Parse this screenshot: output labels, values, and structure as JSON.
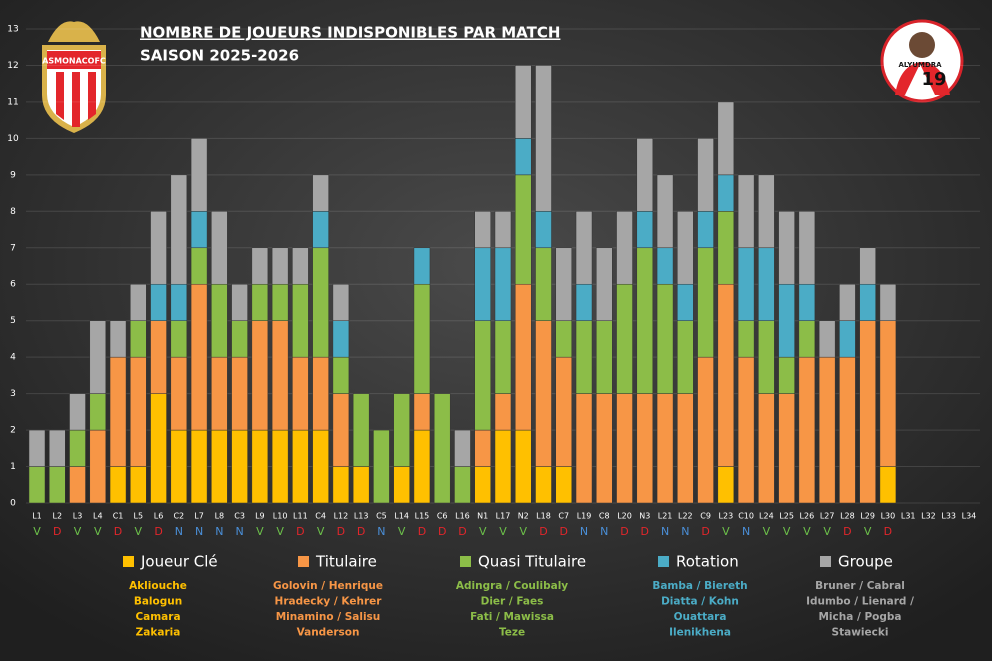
{
  "chart_data": {
    "type": "stacked-bar",
    "title": "NOMBRE DE JOUEURS INDISPONIBLES PAR MATCH",
    "subtitle": "SAISON 2025-2026",
    "categories": [
      "L1",
      "L2",
      "L3",
      "L4",
      "C1",
      "L5",
      "L6",
      "C2",
      "L7",
      "L8",
      "C3",
      "L9",
      "L10",
      "L11",
      "C4",
      "L12",
      "L13",
      "C5",
      "L14",
      "L15",
      "C6",
      "L16",
      "N1",
      "L17",
      "N2",
      "L18",
      "C7",
      "L19",
      "C8",
      "L20",
      "N3",
      "L21",
      "L22",
      "C9",
      "L23",
      "C10",
      "L24",
      "L25",
      "L26",
      "L27",
      "L28",
      "L29",
      "L30",
      "L31",
      "L32",
      "L33",
      "L34"
    ],
    "results": [
      "V",
      "D",
      "V",
      "V",
      "D",
      "V",
      "D",
      "N",
      "N",
      "N",
      "N",
      "V",
      "V",
      "D",
      "V",
      "D",
      "D",
      "N",
      "V",
      "D",
      "D",
      "D",
      "V",
      "V",
      "V",
      "D",
      "D",
      "N",
      "N",
      "D",
      "D",
      "N",
      "N",
      "D",
      "V",
      "N",
      "V",
      "V",
      "V",
      "V",
      "D",
      "V",
      "D",
      null,
      null,
      null,
      null
    ],
    "result_colors": {
      "V": "#6cc04a",
      "D": "#e2262b",
      "N": "#4a8fd8"
    },
    "series": [
      {
        "name": "Joueur Clé",
        "color": "#ffc000",
        "values": [
          0,
          0,
          0,
          0,
          1,
          1,
          3,
          2,
          2,
          2,
          2,
          2,
          2,
          2,
          2,
          1,
          1,
          0,
          1,
          2,
          0,
          0,
          1,
          2,
          2,
          1,
          1,
          0,
          0,
          0,
          0,
          0,
          0,
          0,
          1,
          0,
          0,
          0,
          0,
          0,
          0,
          0,
          1,
          0,
          0,
          0,
          0
        ],
        "players": [
          "Akliouche",
          "Balogun",
          "Camara",
          "Zakaria"
        ]
      },
      {
        "name": "Titulaire",
        "color": "#f79646",
        "values": [
          0,
          0,
          1,
          2,
          3,
          3,
          2,
          2,
          4,
          2,
          2,
          3,
          3,
          2,
          2,
          2,
          0,
          0,
          0,
          1,
          0,
          0,
          1,
          1,
          4,
          4,
          3,
          3,
          3,
          3,
          3,
          3,
          3,
          4,
          5,
          4,
          3,
          3,
          4,
          4,
          4,
          5,
          4,
          0,
          0,
          0,
          0
        ],
        "players": [
          "Golovin / Henrique",
          "Hradecky / Kehrer",
          "Minamino / Salisu",
          "Vanderson"
        ]
      },
      {
        "name": "Quasi Titulaire",
        "color": "#8cbd48",
        "values": [
          1,
          1,
          1,
          1,
          0,
          1,
          0,
          1,
          1,
          2,
          1,
          1,
          1,
          2,
          3,
          1,
          2,
          2,
          2,
          3,
          3,
          1,
          3,
          2,
          3,
          2,
          1,
          2,
          2,
          3,
          4,
          3,
          2,
          3,
          2,
          1,
          2,
          1,
          1,
          0,
          0,
          0,
          0,
          0,
          0,
          0,
          0
        ],
        "players": [
          "Adingra / Coulibaly",
          "Dier / Faes",
          "Fati / Mawissa",
          "Teze"
        ]
      },
      {
        "name": "Rotation",
        "color": "#4bacc6",
        "values": [
          0,
          0,
          0,
          0,
          0,
          0,
          1,
          1,
          1,
          0,
          0,
          0,
          0,
          0,
          1,
          1,
          0,
          0,
          0,
          1,
          0,
          0,
          2,
          2,
          1,
          1,
          0,
          1,
          0,
          0,
          1,
          1,
          1,
          1,
          1,
          2,
          2,
          2,
          1,
          0,
          1,
          1,
          0,
          0,
          0,
          0,
          0
        ],
        "players": [
          "Bamba / Biereth",
          "Diatta / Kohn",
          "Ouattara",
          "Ilenikhena"
        ]
      },
      {
        "name": "Groupe",
        "color": "#a6a6a6",
        "values": [
          1,
          1,
          1,
          2,
          1,
          1,
          2,
          3,
          2,
          2,
          1,
          1,
          1,
          1,
          1,
          1,
          0,
          0,
          0,
          0,
          0,
          1,
          1,
          1,
          2,
          4,
          2,
          2,
          2,
          2,
          2,
          2,
          2,
          2,
          2,
          2,
          2,
          2,
          2,
          1,
          1,
          1,
          1,
          0,
          0,
          0,
          0
        ],
        "players": [
          "Bruner / Cabral",
          "Idumbo / Lienard /",
          "Micha / Pogba",
          "Stawiecki"
        ]
      }
    ],
    "ylim": [
      0,
      13
    ],
    "yticks": [
      0,
      1,
      2,
      3,
      4,
      5,
      6,
      7,
      8,
      9,
      10,
      11,
      12,
      13
    ],
    "grid": true
  },
  "logo": {
    "text": "ASMONACOFC"
  },
  "avatar": {
    "name": "ALYUMDRA",
    "number": "19"
  }
}
